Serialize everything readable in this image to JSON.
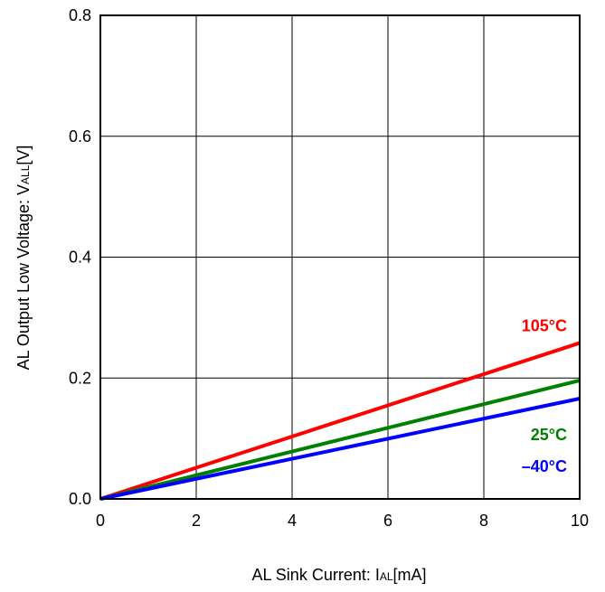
{
  "chart_data": {
    "type": "line",
    "xlabel": {
      "main": "AL Sink Current: I",
      "sub": "AL",
      "suffix": "[mA]"
    },
    "ylabel": {
      "main": "AL Output Low Voltage: V",
      "sub": "ALL",
      "suffix": "[V]"
    },
    "xlim": [
      0,
      10
    ],
    "ylim": [
      0,
      0.8
    ],
    "x_ticks": [
      0,
      2,
      4,
      6,
      8,
      10
    ],
    "x_tick_labels": [
      "0",
      "2",
      "4",
      "6",
      "8",
      "10"
    ],
    "y_ticks": [
      0,
      0.2,
      0.4,
      0.6,
      0.8
    ],
    "y_tick_labels": [
      "0.0",
      "0.2",
      "0.4",
      "0.6",
      "0.8"
    ],
    "grid": true,
    "series": [
      {
        "name": "105°C",
        "color": "#ff0000",
        "x": [
          0,
          10
        ],
        "y": [
          0,
          0.258
        ]
      },
      {
        "name": "25°C",
        "color": "#008000",
        "x": [
          0,
          10
        ],
        "y": [
          0,
          0.196
        ]
      },
      {
        "name": "–40°C",
        "color": "#0000ff",
        "x": [
          0,
          10
        ],
        "y": [
          0,
          0.166
        ]
      }
    ]
  }
}
